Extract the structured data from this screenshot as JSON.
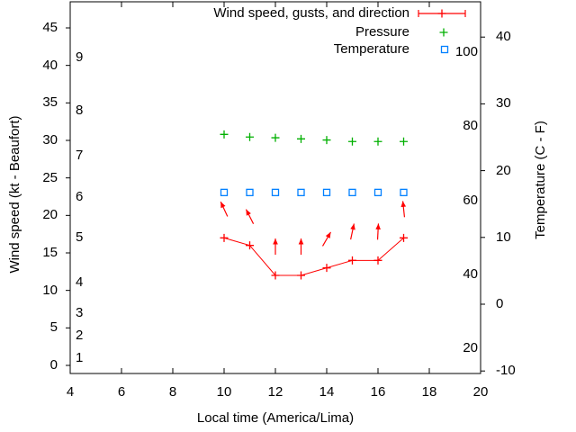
{
  "legend": {
    "items": [
      {
        "label": "Wind speed, gusts, and direction",
        "key": "errorbar",
        "color": "#ff0000"
      },
      {
        "label": "Pressure",
        "key": "plus",
        "color": "#00b000"
      },
      {
        "label": "Temperature",
        "key": "open-square",
        "color": "#0080ff"
      }
    ]
  },
  "axes": {
    "x": {
      "title": "Local time (America/Lima)",
      "tick_labels": [
        "4",
        "6",
        "8",
        "10",
        "12",
        "14",
        "16",
        "18",
        "20"
      ],
      "tick_values": [
        4,
        6,
        8,
        10,
        12,
        14,
        16,
        18,
        20
      ]
    },
    "left": {
      "title": "Wind speed (kt - Beaufort)",
      "tick_labels": [
        "0",
        "5",
        "10",
        "15",
        "20",
        "25",
        "30",
        "35",
        "40",
        "45"
      ],
      "tick_values": [
        0,
        5,
        10,
        15,
        20,
        25,
        30,
        35,
        40,
        45
      ]
    },
    "left_inner_beaufort": {
      "labels": [
        "1",
        "2",
        "3",
        "4",
        "5",
        "6",
        "7",
        "8",
        "9"
      ],
      "kt_positions": [
        1,
        4,
        7,
        11,
        17,
        22.5,
        28,
        34,
        41
      ]
    },
    "right": {
      "title": "Temperature (C - F)",
      "tick_labels": [
        "-10",
        "0",
        "10",
        "20",
        "30",
        "40"
      ],
      "tick_values": [
        -10,
        0,
        10,
        20,
        30,
        40
      ]
    },
    "right_inner_fahrenheit": {
      "labels": [
        "20",
        "40",
        "60",
        "80",
        "100"
      ],
      "c_positions": [
        -6.67,
        4.44,
        15.56,
        26.67,
        37.78
      ]
    }
  },
  "chart_data": {
    "type": "line",
    "title": "",
    "xlabel": "Local time (America/Lima)",
    "ylabel_left": "Wind speed (kt - Beaufort)",
    "ylabel_right": "Temperature (C - F)",
    "x_range": [
      4,
      20
    ],
    "left_axis_range_kt": [
      0,
      48.5
    ],
    "right_axis_range_c": [
      -10.3,
      45.4
    ],
    "grid": false,
    "legend_position": "top-right",
    "x_hours": [
      10,
      11,
      12,
      13,
      14,
      15,
      16,
      17
    ],
    "series": [
      {
        "name": "Wind speed, gusts, and direction",
        "axis": "left",
        "marker": "plus",
        "line": true,
        "color": "#ff0000",
        "values_kt": [
          17,
          16,
          12,
          12,
          13,
          14,
          14,
          17
        ],
        "direction_arrow_angles_deg": [
          -25,
          -27,
          0,
          0,
          30,
          12,
          3,
          -6
        ]
      },
      {
        "name": "Pressure",
        "axis": "left",
        "marker": "plus",
        "line": false,
        "color": "#00b000",
        "values_on_left_axis_inHg": [
          30.8,
          30.45,
          30.35,
          30.2,
          30.05,
          29.85,
          29.85,
          29.85
        ]
      },
      {
        "name": "Temperature",
        "axis": "right",
        "marker": "open-square",
        "line": false,
        "color": "#0080ff",
        "values_c": [
          17,
          17,
          17,
          17,
          17,
          17,
          17,
          17
        ]
      }
    ]
  }
}
